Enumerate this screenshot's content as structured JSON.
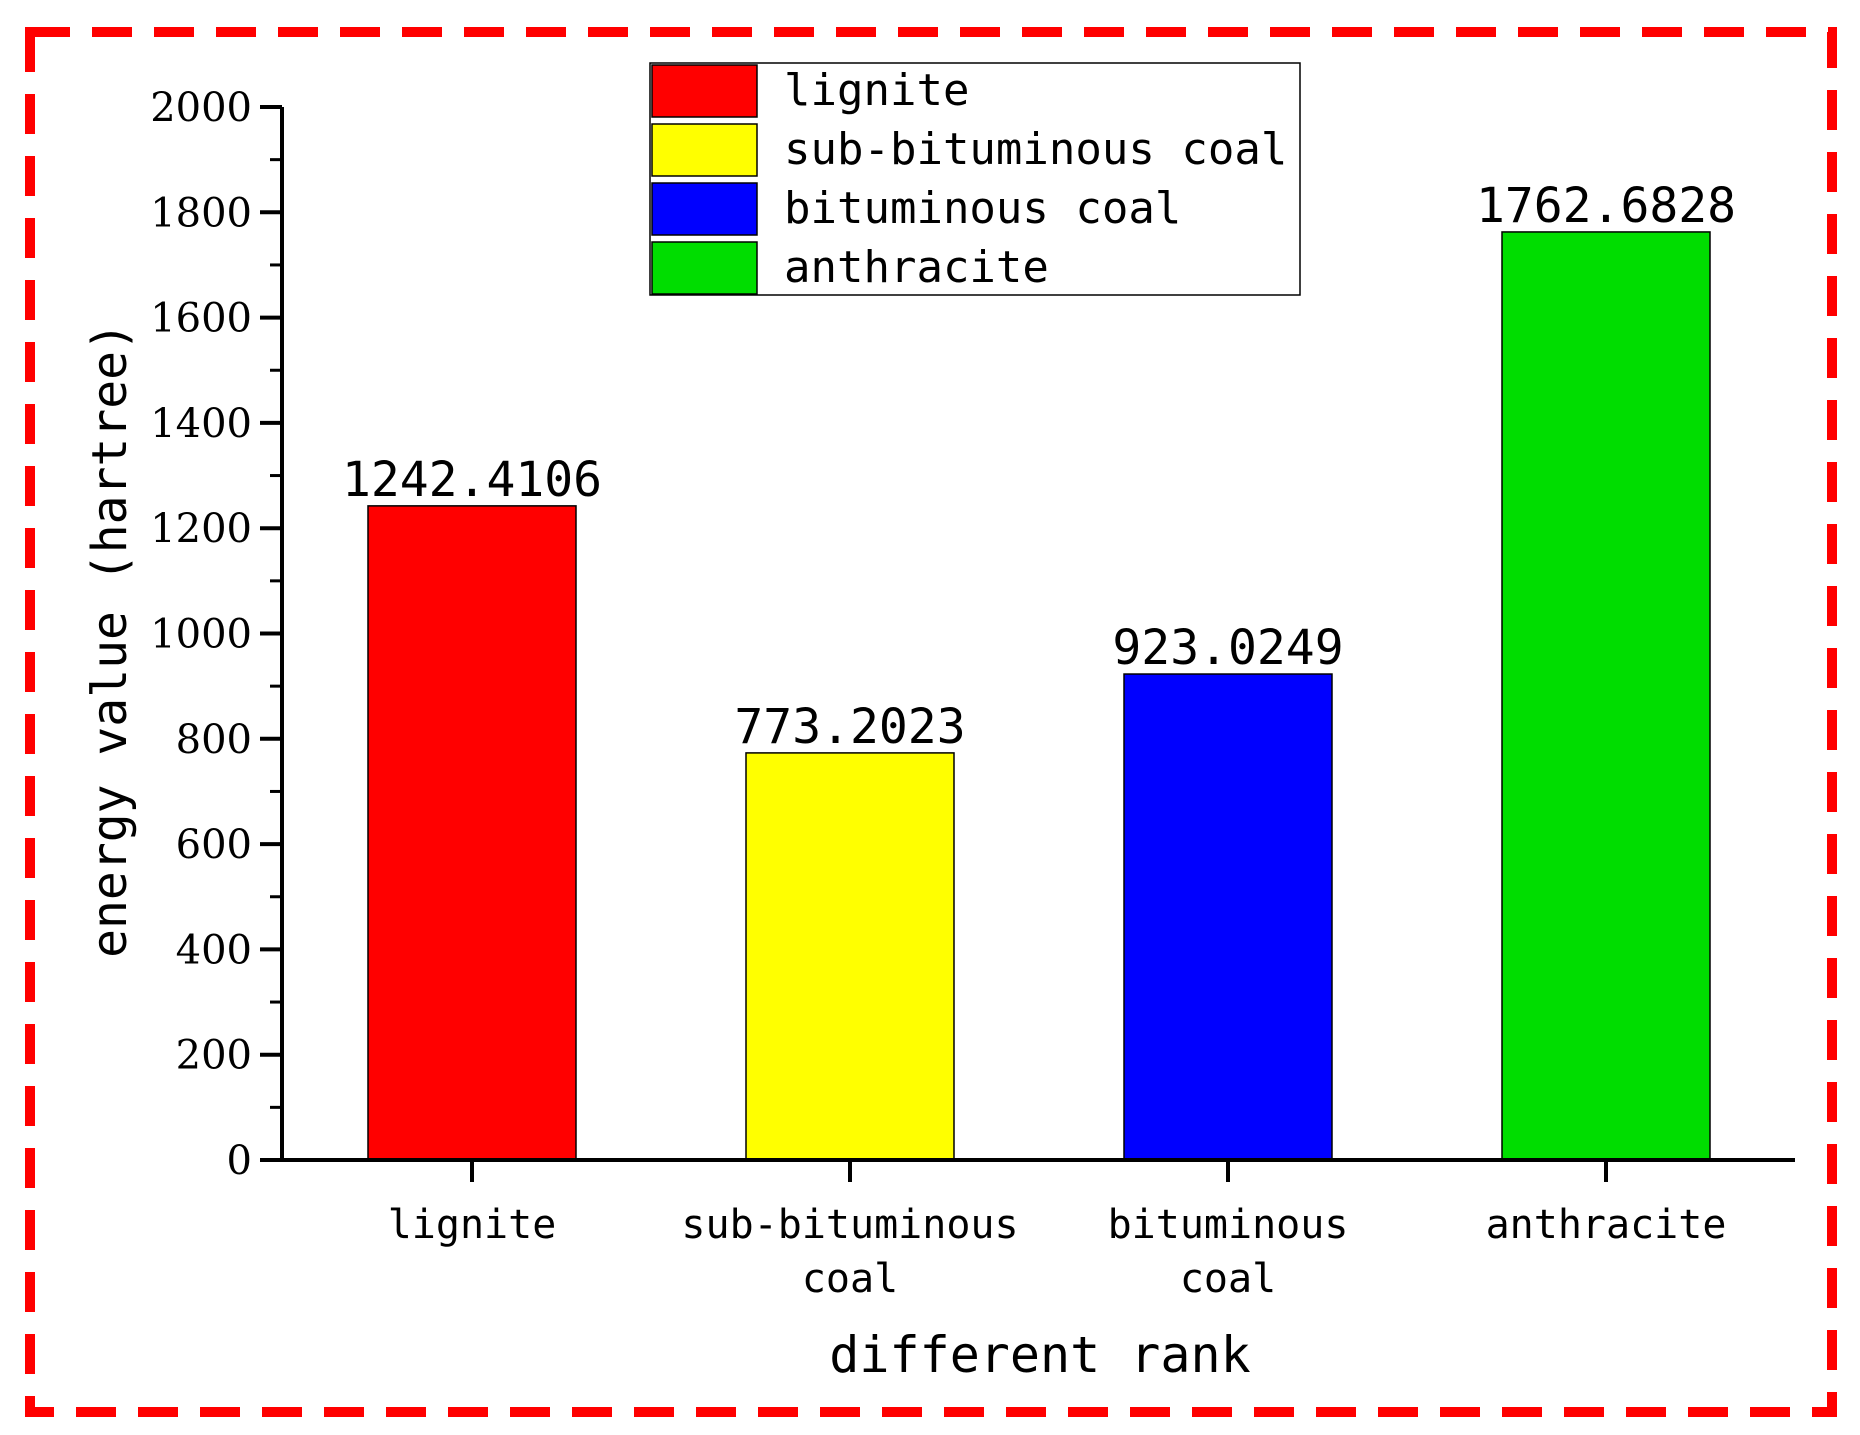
{
  "chart_data": {
    "type": "bar",
    "categories": [
      {
        "lines": [
          "lignite"
        ]
      },
      {
        "lines": [
          "sub-bituminous",
          "coal"
        ]
      },
      {
        "lines": [
          "bituminous",
          "coal"
        ]
      },
      {
        "lines": [
          "anthracite"
        ]
      }
    ],
    "values": [
      1242.4106,
      773.2023,
      923.0249,
      1762.6828
    ],
    "value_labels": [
      "1242.4106",
      "773.2023",
      "923.0249",
      "1762.6828"
    ],
    "colors": [
      "#ff0000",
      "#ffff00",
      "#0000ff",
      "#00dd00"
    ],
    "xlabel": "different rank",
    "ylabel": "energy value (hartree)",
    "ylim": [
      0,
      2000
    ],
    "yticks": [
      0,
      200,
      400,
      600,
      800,
      1000,
      1200,
      1400,
      1600,
      1800,
      2000
    ],
    "legend": {
      "placement": "top-center",
      "entries": [
        {
          "label": "lignite",
          "color": "#ff0000"
        },
        {
          "label": "sub-bituminous coal",
          "color": "#ffff00"
        },
        {
          "label": "bituminous coal",
          "color": "#0000ff"
        },
        {
          "label": "anthracite",
          "color": "#00dd00"
        }
      ]
    },
    "grid": false,
    "frame_color": "#ff0000"
  }
}
